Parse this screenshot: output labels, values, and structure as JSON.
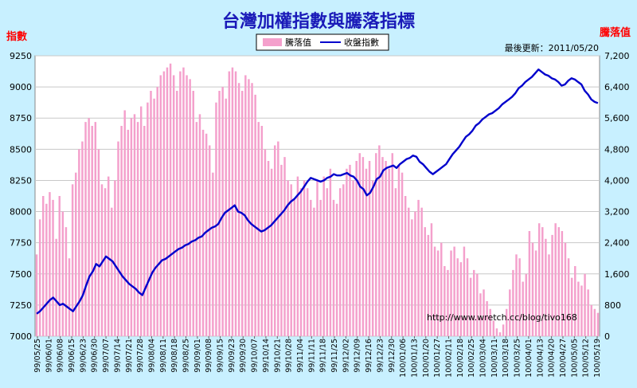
{
  "chart_data": {
    "type": "bar+line",
    "title": "台灣加權指數與騰落指標",
    "left_axis_label": "指數",
    "right_axis_label": "騰落值",
    "update_text": "最後更新：2011/05/20",
    "watermark": "http://www.wretch.cc/blog/tivo168",
    "left_ylim": [
      7000,
      9250
    ],
    "right_ylim": [
      0,
      7200
    ],
    "left_ticks": [
      7000,
      7250,
      7500,
      7750,
      8000,
      8250,
      8500,
      8750,
      9000,
      9250
    ],
    "right_ticks": [
      "0",
      "800",
      "1,600",
      "2,400",
      "3,200",
      "4,000",
      "4,800",
      "5,600",
      "6,400",
      "7,200"
    ],
    "x_tick_labels": [
      "99/05/25",
      "99/06/01",
      "99/06/08",
      "99/06/15",
      "99/06/23",
      "99/06/30",
      "99/07/07",
      "99/07/14",
      "99/07/21",
      "99/07/28",
      "99/08/04",
      "99/08/11",
      "99/08/18",
      "99/08/25",
      "99/09/01",
      "99/09/08",
      "99/09/15",
      "99/09/23",
      "99/09/30",
      "99/10/07",
      "99/10/14",
      "99/10/21",
      "99/10/28",
      "99/11/04",
      "99/11/11",
      "99/11/18",
      "99/11/25",
      "99/12/02",
      "99/12/09",
      "99/12/16",
      "99/12/23",
      "99/12/30",
      "100/01/06",
      "100/01/13",
      "100/01/20",
      "100/01/27",
      "100/02/11",
      "100/02/18",
      "100/02/25",
      "100/03/04",
      "100/03/11",
      "100/03/18",
      "100/03/25",
      "100/04/01",
      "100/04/13",
      "100/04/20",
      "100/04/27",
      "100/05/05",
      "100/05/12",
      "100/05/19"
    ],
    "series": [
      {
        "name": "騰落值",
        "color": "#f4a0cc",
        "axis": "right",
        "values": [
          2100,
          3000,
          3600,
          3400,
          3700,
          3500,
          2500,
          3600,
          3200,
          2800,
          2000,
          3900,
          4200,
          4800,
          5000,
          5500,
          5600,
          5400,
          5500,
          4800,
          3900,
          3800,
          4100,
          3300,
          4000,
          5000,
          5400,
          5800,
          5300,
          5600,
          5700,
          5500,
          5900,
          5400,
          6000,
          6300,
          6100,
          6400,
          6700,
          6800,
          6900,
          7000,
          6700,
          6300,
          6800,
          6900,
          6700,
          6600,
          6300,
          5500,
          5700,
          5300,
          5200,
          4900,
          4200,
          6000,
          6300,
          6400,
          6100,
          6800,
          6900,
          6800,
          6500,
          6300,
          6700,
          6600,
          6500,
          6200,
          5500,
          5400,
          4800,
          4500,
          4300,
          4900,
          5000,
          4400,
          4600,
          4000,
          3900,
          3500,
          4100,
          3800,
          4000,
          3800,
          3500,
          3300,
          4000,
          3500,
          4100,
          3800,
          4300,
          3500,
          3400,
          3800,
          3900,
          4300,
          4400,
          4000,
          4500,
          4700,
          4600,
          4300,
          4500,
          4000,
          4700,
          4900,
          4600,
          4500,
          4300,
          4700,
          3800,
          4400,
          4200,
          3600,
          3300,
          3000,
          3200,
          3500,
          3300,
          2800,
          2600,
          2900,
          2300,
          2200,
          2400,
          1800,
          1700,
          2200,
          2300,
          2000,
          1900,
          2300,
          2000,
          1500,
          1700,
          1600,
          1100,
          1200,
          900,
          700,
          400,
          200,
          100,
          300,
          700,
          1200,
          1700,
          2100,
          2000,
          1400,
          1600,
          2700,
          2400,
          2200,
          2900,
          2800,
          2500,
          2100,
          2600,
          2900,
          2800,
          2700,
          2400,
          2000,
          1500,
          1800,
          1400,
          1300,
          1600,
          1200,
          800,
          700,
          600
        ]
      },
      {
        "name": "收盤指數",
        "color": "#0000cc",
        "axis": "left",
        "values": [
          7180,
          7200,
          7230,
          7260,
          7290,
          7310,
          7280,
          7250,
          7260,
          7240,
          7220,
          7200,
          7240,
          7280,
          7330,
          7410,
          7480,
          7520,
          7580,
          7560,
          7600,
          7640,
          7620,
          7600,
          7560,
          7520,
          7480,
          7450,
          7420,
          7400,
          7380,
          7350,
          7330,
          7390,
          7450,
          7510,
          7550,
          7580,
          7610,
          7620,
          7640,
          7660,
          7680,
          7700,
          7710,
          7730,
          7740,
          7760,
          7770,
          7790,
          7800,
          7830,
          7850,
          7870,
          7880,
          7900,
          7950,
          7990,
          8010,
          8030,
          8050,
          8000,
          7990,
          7970,
          7930,
          7900,
          7880,
          7860,
          7840,
          7850,
          7870,
          7890,
          7920,
          7950,
          7980,
          8010,
          8050,
          8080,
          8100,
          8130,
          8160,
          8200,
          8240,
          8270,
          8260,
          8250,
          8240,
          8250,
          8270,
          8280,
          8300,
          8290,
          8290,
          8300,
          8310,
          8290,
          8280,
          8250,
          8200,
          8180,
          8130,
          8150,
          8200,
          8260,
          8280,
          8330,
          8350,
          8360,
          8370,
          8350,
          8380,
          8400,
          8420,
          8430,
          8450,
          8440,
          8400,
          8380,
          8350,
          8320,
          8300,
          8320,
          8340,
          8360,
          8380,
          8420,
          8460,
          8490,
          8520,
          8560,
          8600,
          8620,
          8650,
          8690,
          8710,
          8740,
          8760,
          8780,
          8790,
          8810,
          8830,
          8860,
          8880,
          8900,
          8920,
          8950,
          8990,
          9010,
          9040,
          9060,
          9080,
          9110,
          9140,
          9120,
          9100,
          9090,
          9070,
          9060,
          9040,
          9010,
          9020,
          9050,
          9070,
          9060,
          9040,
          9020,
          8970,
          8940,
          8900,
          8880,
          8870
        ]
      }
    ]
  }
}
